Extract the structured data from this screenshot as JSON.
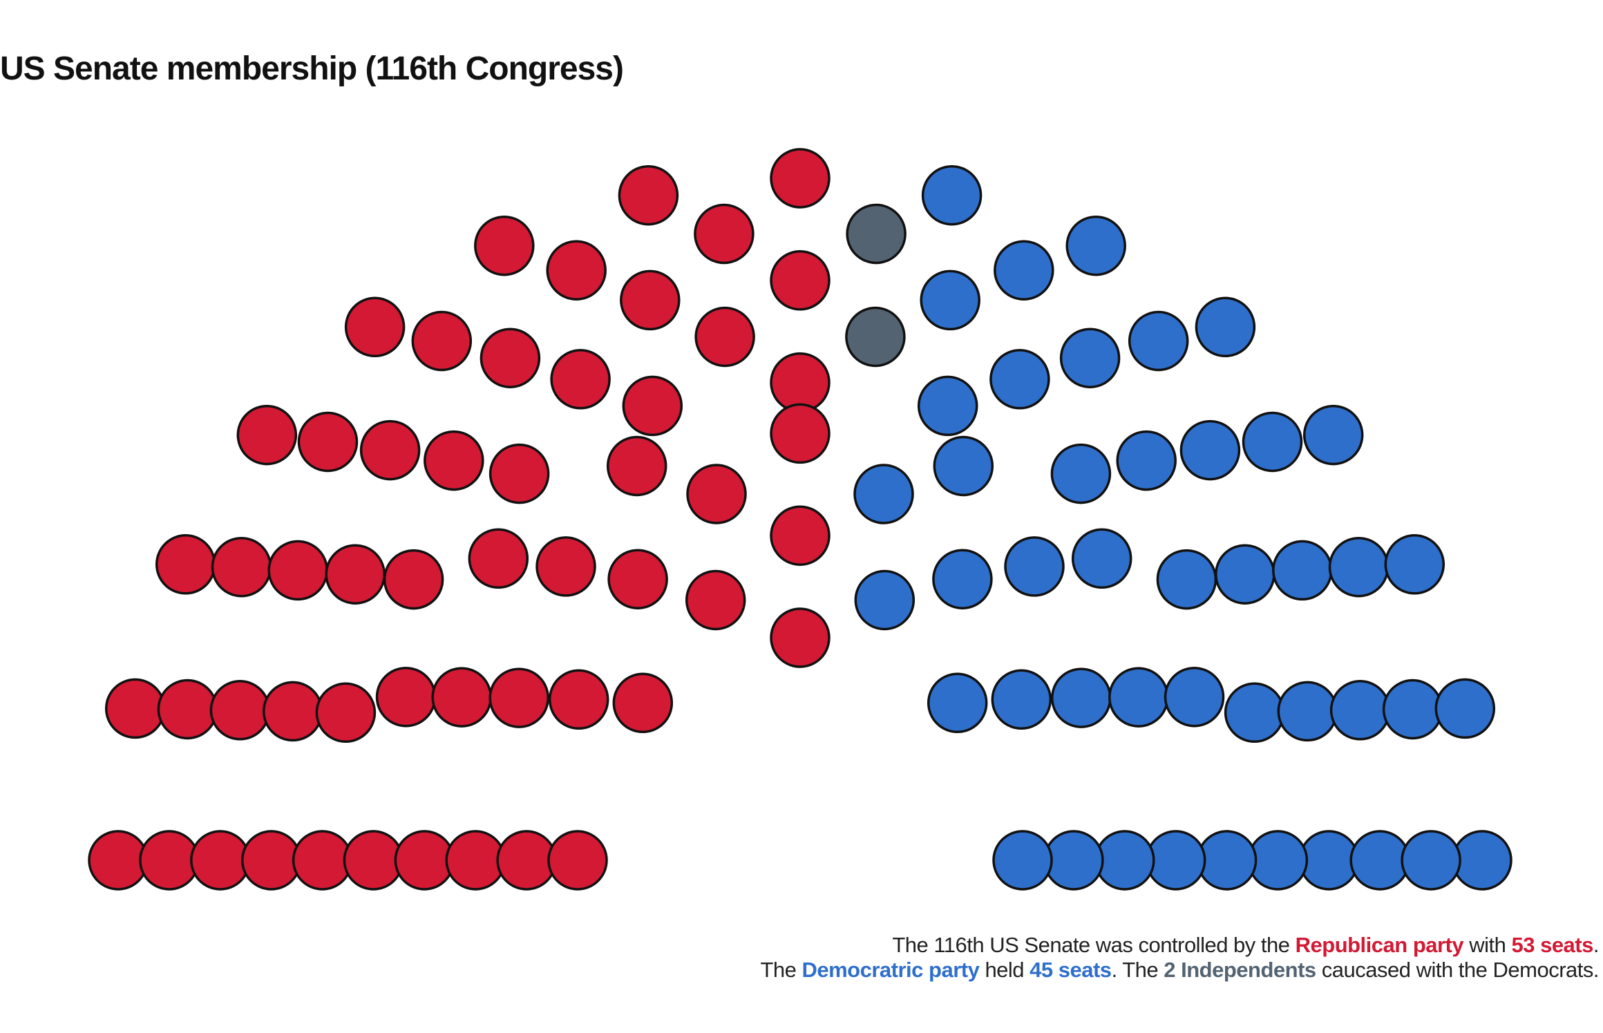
{
  "chart_data": {
    "type": "parliament",
    "title": "US Senate membership (116th Congress)",
    "parties": [
      {
        "name": "Republican party",
        "seats": 53,
        "color": "#D31933"
      },
      {
        "name": "Independents",
        "seats": 2,
        "color": "#536372"
      },
      {
        "name": "Democratic party",
        "seats": 45,
        "color": "#2E6FCB"
      }
    ],
    "total_seats": 100,
    "rows": 10,
    "caption": {
      "line1": {
        "pre": "The 116th US Senate was controlled by the ",
        "party": "Republican party",
        "mid": " with ",
        "seats": "53 seats",
        "post": "."
      },
      "line2": {
        "pre": "The ",
        "party": "Democratric party",
        "mid1": " held ",
        "seats": "45 seats",
        "mid2": ". The ",
        "independents": "2 Independents",
        "post": " caucased with the Democrats."
      }
    }
  }
}
